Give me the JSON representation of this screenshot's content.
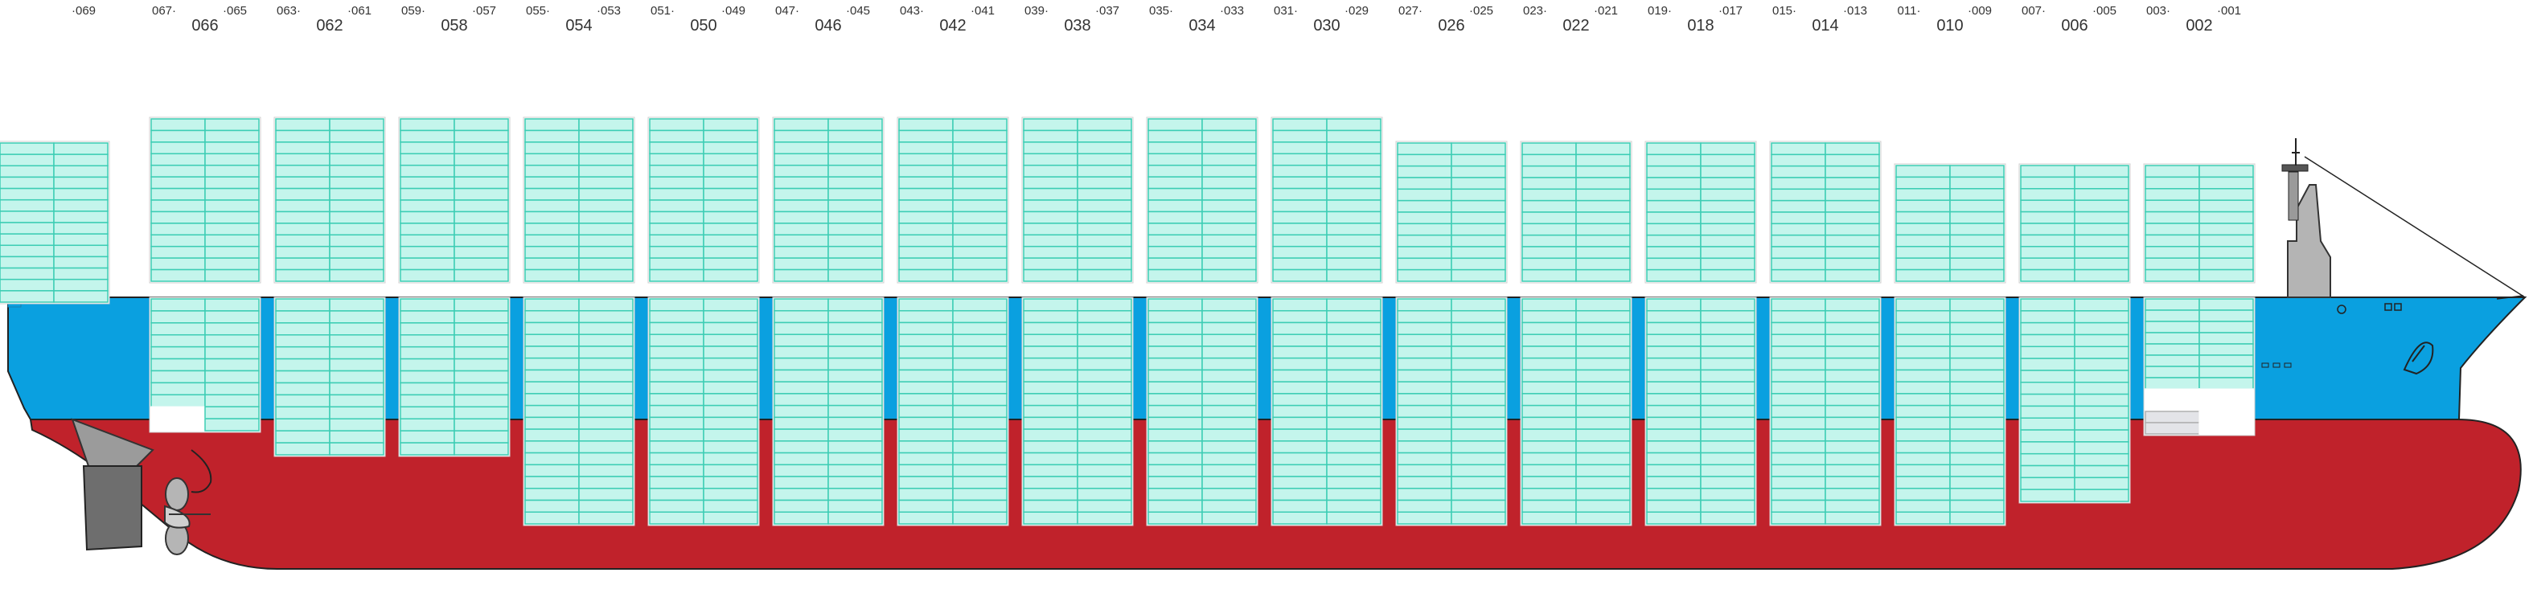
{
  "bays": [
    {
      "even": "066",
      "odd_left": "067·",
      "odd_right": "·065"
    },
    {
      "even": "062",
      "odd_left": "063·",
      "odd_right": "·061"
    },
    {
      "even": "058",
      "odd_left": "059·",
      "odd_right": "·057"
    },
    {
      "even": "054",
      "odd_left": "055·",
      "odd_right": "·053"
    },
    {
      "even": "050",
      "odd_left": "051·",
      "odd_right": "·049"
    },
    {
      "even": "046",
      "odd_left": "047·",
      "odd_right": "·045"
    },
    {
      "even": "042",
      "odd_left": "043·",
      "odd_right": "·041"
    },
    {
      "even": "038",
      "odd_left": "039·",
      "odd_right": "·037"
    },
    {
      "even": "034",
      "odd_left": "035·",
      "odd_right": "·033"
    },
    {
      "even": "030",
      "odd_left": "031·",
      "odd_right": "·029"
    },
    {
      "even": "026",
      "odd_left": "027·",
      "odd_right": "·025"
    },
    {
      "even": "022",
      "odd_left": "023·",
      "odd_right": "·021"
    },
    {
      "even": "018",
      "odd_left": "019·",
      "odd_right": "·017"
    },
    {
      "even": "014",
      "odd_left": "015·",
      "odd_right": "·013"
    },
    {
      "even": "010",
      "odd_left": "011·",
      "odd_right": "·009"
    },
    {
      "even": "006",
      "odd_left": "007·",
      "odd_right": "·005"
    },
    {
      "even": "002",
      "odd_left": "003·",
      "odd_right": "·001"
    }
  ],
  "stern_bay": {
    "odd_right": "·069"
  },
  "colors": {
    "hull_red": "#c0222b",
    "hull_blue": "#0aa0e0",
    "container_fill": "#c4f5ec",
    "container_stroke": "#3ccdb4",
    "empty_slot": "#e3e4e8",
    "superstructure": "#b4b4b4",
    "rudder": "#6e6e6e"
  }
}
